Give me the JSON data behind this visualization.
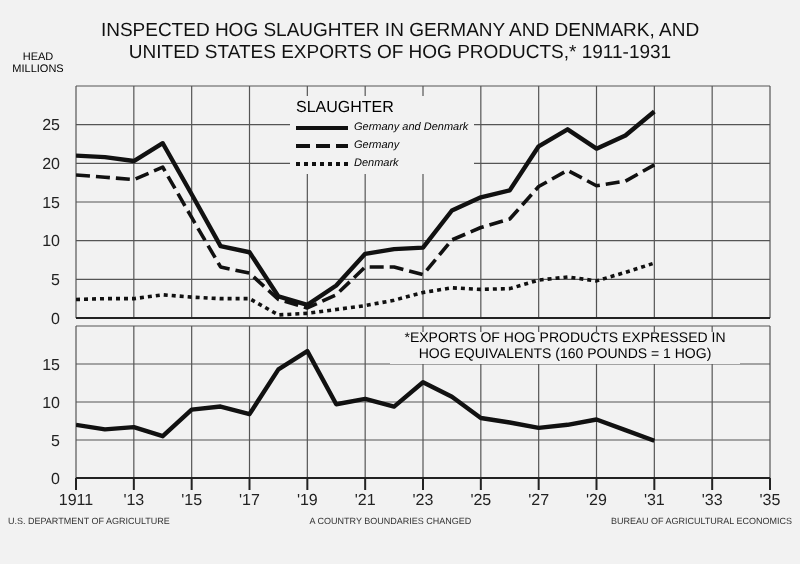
{
  "chart_data": [
    {
      "type": "line",
      "title": "INSPECTED HOG SLAUGHTER IN GERMANY AND DENMARK, AND UNITED STATES EXPORTS OF HOG PRODUCTS,* 1911-1931",
      "ylabel": "HEAD MILLIONS",
      "legend_title": "SLAUGHTER",
      "legend": "top",
      "grid": true,
      "tick_labels": "y",
      "x": [
        1911,
        1912,
        1913,
        1914,
        1915,
        1916,
        1917,
        1918,
        1919,
        1920,
        1921,
        1922,
        1923,
        1924,
        1925,
        1926,
        1927,
        1928,
        1929,
        1930,
        1931
      ],
      "xlim": [
        1911,
        1935
      ],
      "xticks": [
        1911,
        1913,
        1915,
        1917,
        1919,
        1921,
        1923,
        1925,
        1927,
        1929,
        1931,
        1933,
        1935
      ],
      "ylim": [
        0,
        30
      ],
      "yticks": [
        0,
        5,
        10,
        15,
        20,
        25
      ],
      "series": [
        {
          "name": "Germany and Denmark",
          "color": "#111111",
          "line_style": "solid",
          "values": [
            21,
            20.8,
            20.3,
            22.6,
            16,
            9.3,
            8.5,
            2.8,
            1.7,
            4.2,
            8.3,
            8.9,
            9.1,
            13.9,
            15.6,
            16.5,
            22.2,
            24.4,
            21.9,
            23.6,
            26.7
          ]
        },
        {
          "name": "Germany",
          "color": "#111111",
          "line_style": "dashed",
          "values": [
            18.5,
            18.2,
            17.9,
            19.5,
            13,
            6.6,
            5.8,
            2.4,
            1.3,
            3,
            6.6,
            6.6,
            5.6,
            10.1,
            11.7,
            12.8,
            17,
            19.1,
            17.1,
            17.7,
            19.8
          ]
        },
        {
          "name": "Denmark",
          "color": "#111111",
          "line_style": "dotted",
          "values": [
            2.4,
            2.5,
            2.5,
            3,
            2.7,
            2.5,
            2.5,
            0.4,
            0.6,
            1.1,
            1.6,
            2.3,
            3.3,
            3.9,
            3.7,
            3.8,
            4.9,
            5.3,
            4.8,
            5.9,
            7.1
          ]
        }
      ]
    },
    {
      "type": "line",
      "grid": true,
      "annotations": [
        "*EXPORTS OF HOG PRODUCTS EXPRESSED IN HOG EQUIVALENTS (160 POUNDS = 1 HOG)",
        "U.S. DEPARTMENT OF AGRICULTURE",
        "A COUNTRY BOUNDARIES CHANGED",
        "BUREAU OF AGRICULTURAL ECONOMICS"
      ],
      "x": [
        1911,
        1912,
        1913,
        1914,
        1915,
        1916,
        1917,
        1918,
        1919,
        1920,
        1921,
        1922,
        1923,
        1924,
        1925,
        1926,
        1927,
        1928,
        1929,
        1930,
        1931
      ],
      "xlim": [
        1911,
        1935
      ],
      "xticks": [
        {
          "value": 1911,
          "label": "1911"
        },
        {
          "value": 1913,
          "label": "'13"
        },
        {
          "value": 1915,
          "label": "'15"
        },
        {
          "value": 1917,
          "label": "'17"
        },
        {
          "value": 1919,
          "label": "'19"
        },
        {
          "value": 1921,
          "label": "'21"
        },
        {
          "value": 1923,
          "label": "'23"
        },
        {
          "value": 1925,
          "label": "'25"
        },
        {
          "value": 1927,
          "label": "'27"
        },
        {
          "value": 1929,
          "label": "'29"
        },
        {
          "value": 1931,
          "label": "'31"
        },
        {
          "value": 1933,
          "label": "'33"
        },
        {
          "value": 1935,
          "label": "'35"
        }
      ],
      "ylim": [
        0,
        20
      ],
      "yticks": [
        0,
        5,
        10,
        15
      ],
      "series": [
        {
          "color": "#111111",
          "line_style": "solid",
          "values": [
            7,
            6.4,
            6.7,
            5.5,
            9,
            9.4,
            8.4,
            14.3,
            16.7,
            9.7,
            10.4,
            9.4,
            12.6,
            10.7,
            7.9,
            7.3,
            6.6,
            7,
            7.7,
            6.3,
            4.9
          ]
        }
      ]
    }
  ]
}
